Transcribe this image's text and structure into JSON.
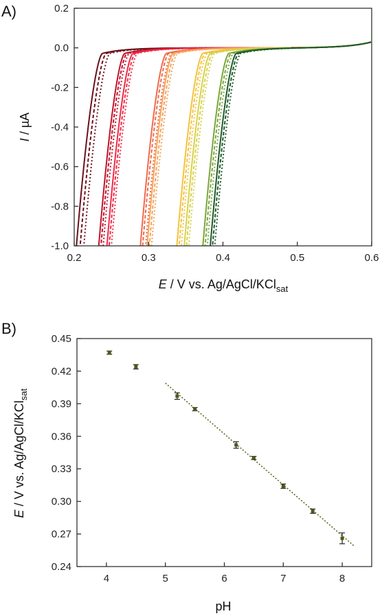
{
  "chart_data": [
    {
      "panel_label": "A)",
      "type": "line",
      "xlabel": {
        "italic": "E",
        "main": " / V vs. Ag/AgCl/KCl",
        "sub": "sat"
      },
      "ylabel": {
        "italic": "I",
        "main": " / µA"
      },
      "xlim": [
        0.2,
        0.6
      ],
      "ylim": [
        -1.0,
        0.2
      ],
      "xticks": [
        "0.2",
        "0.3",
        "0.4",
        "0.5",
        "0.6"
      ],
      "yticks": [
        "-1.0",
        "-0.8",
        "-0.6",
        "-0.4",
        "-0.2",
        "0.0",
        "0.2"
      ],
      "grid": false,
      "series": [
        {
          "color": "#6b0f1a",
          "onsets": [
            0.238,
            0.243,
            0.248
          ]
        },
        {
          "color": "#c0122b",
          "onsets": [
            0.268,
            0.271,
            0.274
          ]
        },
        {
          "color": "#ee2a45",
          "onsets": [
            0.279,
            0.282,
            0.285
          ]
        },
        {
          "color": "#f06a4a",
          "onsets": [
            0.324,
            0.327,
            0.331
          ]
        },
        {
          "color": "#f5a35a",
          "onsets": [
            0.333,
            0.336,
            0.339
          ]
        },
        {
          "color": "#f4c23c",
          "onsets": [
            0.373,
            0.376,
            0.379
          ]
        },
        {
          "color": "#d8d24a",
          "onsets": [
            0.383,
            0.386,
            0.389
          ]
        },
        {
          "color": "#7aa63a",
          "onsets": [
            0.408,
            0.411,
            0.414
          ]
        },
        {
          "color": "#1f5a2a",
          "onsets": [
            0.418,
            0.421,
            0.424
          ]
        }
      ]
    },
    {
      "panel_label": "B)",
      "type": "scatter",
      "xlabel": {
        "main": "pH"
      },
      "ylabel": {
        "italic": "E",
        "main": " / V vs. Ag/AgCl/KCl",
        "sub": "sat"
      },
      "xlim": [
        3.5,
        8.5
      ],
      "ylim": [
        0.24,
        0.45
      ],
      "xticks": [
        "4",
        "5",
        "6",
        "7",
        "8"
      ],
      "yticks": [
        "0.24",
        "0.27",
        "0.30",
        "0.33",
        "0.36",
        "0.39",
        "0.42",
        "0.45"
      ],
      "grid": false,
      "points": [
        {
          "x": 4.05,
          "y": 0.437,
          "err": 0.0015
        },
        {
          "x": 4.5,
          "y": 0.424,
          "err": 0.002
        },
        {
          "x": 5.2,
          "y": 0.397,
          "err": 0.003
        },
        {
          "x": 5.5,
          "y": 0.385,
          "err": 0.0015
        },
        {
          "x": 6.2,
          "y": 0.352,
          "err": 0.003
        },
        {
          "x": 6.5,
          "y": 0.34,
          "err": 0.0015
        },
        {
          "x": 7.0,
          "y": 0.314,
          "err": 0.002
        },
        {
          "x": 7.5,
          "y": 0.291,
          "err": 0.002
        },
        {
          "x": 8.0,
          "y": 0.266,
          "err": 0.005
        }
      ],
      "fit": {
        "x": [
          5.0,
          8.2
        ],
        "y": [
          0.409,
          0.259
        ],
        "color": "#556b1e"
      },
      "marker_color": "#4a5a1a"
    }
  ]
}
